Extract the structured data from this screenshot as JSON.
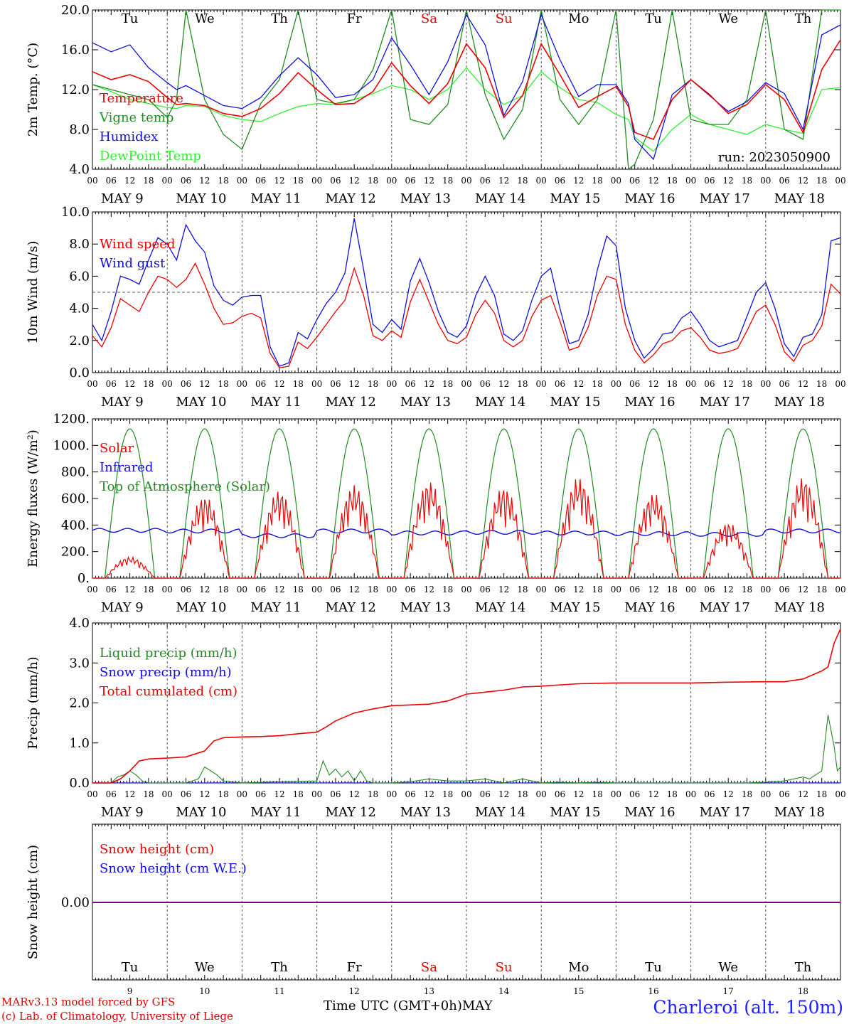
{
  "days": {
    "weekday": [
      "Tu",
      "We",
      "Th",
      "Fr",
      "Sa",
      "Su",
      "Mo",
      "Tu",
      "We",
      "Th"
    ],
    "weekday_color": [
      "#000000",
      "#000000",
      "#000000",
      "#000000",
      "#ee0000",
      "#ee0000",
      "#000000",
      "#000000",
      "#000000",
      "#000000"
    ],
    "date_label": [
      "MAY  9",
      "MAY 10",
      "MAY 11",
      "MAY 12",
      "MAY 13",
      "MAY 14",
      "MAY 15",
      "MAY 16",
      "MAY 17",
      "MAY 18"
    ],
    "day_number": [
      "9",
      "10",
      "11",
      "12",
      "13",
      "14",
      "15",
      "16",
      "17",
      "18"
    ]
  },
  "hour_ticks": [
    "00",
    "06",
    "12",
    "18"
  ],
  "hour_tick_end": "00",
  "footer": {
    "credit_line1": "MARv3.13 model forced by GFS",
    "credit_line2": "(c) Lab. of Climatology, University of Liege",
    "xlabel": "Time UTC (GMT+0h)",
    "month": "MAY",
    "station": "Charleroi (alt. 150m)"
  },
  "colors": {
    "red": "#ee0000",
    "green": "#228b22",
    "blue": "#1010dd",
    "lightgreen": "#33ee33",
    "purple": "#800080"
  },
  "chart_data": [
    {
      "type": "line",
      "ylabel": "2m Temp. (°C)",
      "yticks": [
        "20.0",
        "16.0",
        "12.0",
        "8.0",
        "4.0"
      ],
      "ylim": [
        4,
        20
      ],
      "annotation": "run: 2023050900",
      "x_unit": "hours since MAY 9 00 UTC",
      "series": [
        {
          "name": "Temperature",
          "color": "red",
          "x": [
            0,
            6,
            12,
            18,
            24,
            27,
            30,
            36,
            42,
            48,
            54,
            60,
            66,
            72,
            78,
            84,
            90,
            96,
            102,
            108,
            114,
            120,
            126,
            132,
            138,
            144,
            150,
            156,
            162,
            168,
            172,
            174,
            180,
            186,
            192,
            198,
            204,
            210,
            216,
            222,
            228,
            234,
            240
          ],
          "y": [
            13.8,
            13,
            13.5,
            12.8,
            11.2,
            10.5,
            10.6,
            10.4,
            9.6,
            9.3,
            10.1,
            11.6,
            13.7,
            12,
            10.5,
            10.6,
            11.8,
            14.7,
            12.4,
            10.6,
            12.6,
            16.6,
            14.2,
            9.2,
            11.4,
            16.6,
            13.5,
            10.2,
            11.3,
            12.3,
            10.3,
            7.7,
            7,
            11,
            13,
            11.5,
            9.6,
            10.5,
            12.5,
            11,
            7.7,
            14,
            17
          ]
        },
        {
          "name": "Vigne temp",
          "color": "green",
          "x": [
            0,
            6,
            12,
            18,
            24,
            27,
            30,
            36,
            42,
            48,
            54,
            60,
            66,
            72,
            78,
            84,
            90,
            96,
            102,
            108,
            114,
            120,
            126,
            132,
            138,
            144,
            150,
            156,
            162,
            168,
            172,
            174,
            180,
            186,
            192,
            198,
            204,
            210,
            216,
            222,
            228,
            234,
            240
          ],
          "y": [
            12.5,
            12,
            11.5,
            11,
            9.2,
            11,
            20,
            11,
            7.5,
            6,
            10.6,
            13,
            20,
            11,
            10.6,
            11,
            14,
            20,
            9,
            8.5,
            10.5,
            20,
            11.5,
            7,
            10,
            20,
            11,
            8.5,
            11,
            20,
            4,
            4.5,
            9,
            20,
            9,
            8.5,
            8.5,
            11,
            20,
            8,
            7,
            20,
            20
          ]
        },
        {
          "name": "Humidex",
          "color": "blue",
          "x": [
            0,
            6,
            12,
            18,
            24,
            27,
            30,
            36,
            42,
            48,
            54,
            60,
            66,
            72,
            78,
            84,
            90,
            96,
            102,
            108,
            114,
            120,
            126,
            132,
            138,
            144,
            150,
            156,
            162,
            168,
            172,
            174,
            180,
            186,
            192,
            198,
            204,
            210,
            216,
            222,
            228,
            234,
            240
          ],
          "y": [
            16.7,
            15.8,
            16.5,
            14.2,
            12.7,
            12,
            12.4,
            11.4,
            10.4,
            10.1,
            11.2,
            13.4,
            15.2,
            13.5,
            11.2,
            11.5,
            13,
            17.2,
            14.5,
            11.5,
            14.8,
            19.5,
            16.5,
            9.4,
            12.8,
            19.5,
            15,
            11.3,
            12.5,
            12.5,
            10.6,
            7,
            5,
            11.5,
            13,
            11.4,
            9.8,
            10.8,
            12.7,
            11.6,
            8,
            17.5,
            18.5
          ]
        },
        {
          "name": "DewPoint Temp",
          "color": "lightgreen",
          "x": [
            0,
            6,
            12,
            18,
            24,
            27,
            30,
            36,
            42,
            48,
            54,
            60,
            66,
            72,
            78,
            84,
            90,
            96,
            102,
            108,
            114,
            120,
            126,
            132,
            138,
            144,
            150,
            156,
            162,
            168,
            172,
            174,
            180,
            186,
            192,
            198,
            204,
            210,
            216,
            222,
            228,
            234,
            240
          ],
          "y": [
            12.5,
            11.8,
            11,
            10.6,
            10.2,
            10.1,
            10.4,
            10.3,
            9.4,
            9,
            8.8,
            9.6,
            10.3,
            10.6,
            10.5,
            11,
            11.6,
            12.4,
            12,
            11,
            12,
            14.2,
            12,
            10.5,
            11.4,
            13.8,
            12.2,
            11,
            10.7,
            9.5,
            9,
            7.2,
            5.8,
            8,
            9.5,
            8.5,
            8,
            7.5,
            8.5,
            8,
            7.6,
            12,
            12.2
          ]
        }
      ]
    },
    {
      "type": "line",
      "ylabel": "10m Wind (m/s)",
      "yticks": [
        "10.0",
        "8.0",
        "6.0",
        "4.0",
        "2.0",
        "0.0"
      ],
      "ylim": [
        0,
        10
      ],
      "reference_line": 5.0,
      "x_unit": "hours since MAY 9 00 UTC",
      "series": [
        {
          "name": "Wind speed",
          "color": "red",
          "x": [
            0,
            3,
            6,
            9,
            12,
            15,
            18,
            21,
            24,
            27,
            30,
            33,
            36,
            39,
            42,
            45,
            48,
            51,
            54,
            57,
            60,
            63,
            66,
            69,
            72,
            75,
            78,
            81,
            84,
            87,
            90,
            93,
            96,
            99,
            102,
            105,
            108,
            111,
            114,
            117,
            120,
            123,
            126,
            129,
            132,
            135,
            138,
            141,
            144,
            147,
            150,
            153,
            156,
            159,
            162,
            165,
            168,
            171,
            174,
            177,
            180,
            183,
            186,
            189,
            192,
            195,
            198,
            201,
            204,
            207,
            210,
            213,
            216,
            219,
            222,
            225,
            228,
            231,
            234,
            237,
            240
          ],
          "y": [
            2.3,
            1.6,
            2.8,
            4.6,
            4.2,
            3.8,
            5,
            6,
            5.8,
            5.3,
            5.8,
            6.8,
            5.5,
            4,
            3,
            3.1,
            3.5,
            3.7,
            3.4,
            1.2,
            0.3,
            0.4,
            1.9,
            1.5,
            2.2,
            3,
            3.8,
            4.5,
            6.5,
            4.8,
            2.3,
            2,
            2.6,
            2.2,
            4.4,
            5.8,
            4.4,
            3,
            2,
            1.8,
            2.2,
            3.6,
            4.5,
            3.7,
            2,
            1.6,
            2,
            3.5,
            4.5,
            4.8,
            3.2,
            1.4,
            1.6,
            2.8,
            4.8,
            6,
            5.8,
            3,
            1.4,
            0.6,
            1.1,
            1.8,
            2,
            2.6,
            2.8,
            2.2,
            1.4,
            1.2,
            1.3,
            1.5,
            2.6,
            3.8,
            4.2,
            3,
            1.3,
            0.7,
            1.7,
            2,
            2.9,
            5.5,
            4.9
          ]
        },
        {
          "name": "Wind gust",
          "color": "blue",
          "x": [
            0,
            3,
            6,
            9,
            12,
            15,
            18,
            21,
            24,
            27,
            30,
            33,
            36,
            39,
            42,
            45,
            48,
            51,
            54,
            57,
            60,
            63,
            66,
            69,
            72,
            75,
            78,
            81,
            84,
            87,
            90,
            93,
            96,
            99,
            102,
            105,
            108,
            111,
            114,
            117,
            120,
            123,
            126,
            129,
            132,
            135,
            138,
            141,
            144,
            147,
            150,
            153,
            156,
            159,
            162,
            165,
            168,
            171,
            174,
            177,
            180,
            183,
            186,
            189,
            192,
            195,
            198,
            201,
            204,
            207,
            210,
            213,
            216,
            219,
            222,
            225,
            228,
            231,
            234,
            237,
            240
          ],
          "y": [
            3,
            2,
            3.8,
            6,
            5.8,
            5.5,
            7,
            8.4,
            8,
            7,
            9.2,
            8.2,
            7.5,
            5.4,
            4.5,
            4.2,
            4.7,
            4.8,
            4.8,
            1.6,
            0.4,
            0.6,
            2.5,
            2.1,
            3.3,
            4.3,
            5,
            6.2,
            9.6,
            6.4,
            3,
            2.5,
            3.3,
            2.7,
            5.7,
            7.1,
            5.6,
            3.8,
            2.5,
            2.2,
            2.9,
            4.8,
            6,
            4.8,
            2.4,
            2,
            2.6,
            4.5,
            6,
            6.5,
            4,
            1.8,
            2,
            3.6,
            6.4,
            8.5,
            7.9,
            4,
            2,
            0.9,
            1.5,
            2.4,
            2.5,
            3.4,
            3.8,
            3,
            2,
            1.6,
            1.8,
            2,
            3.5,
            5,
            5.6,
            4,
            1.8,
            1,
            2.2,
            2.4,
            3.6,
            8.2,
            8.4
          ]
        }
      ]
    },
    {
      "type": "line",
      "ylabel": "Energy fluxes (W/m²)",
      "yticks": [
        "1200.",
        "1000.",
        "800.",
        "600.",
        "400.",
        "200.",
        "0."
      ],
      "ylim": [
        0,
        1200
      ],
      "x_unit": "hours since MAY 9 00 UTC",
      "daily_top_of_atmosphere_peak": 1125,
      "daily_solar_peak": [
        160,
        620,
        660,
        700,
        730,
        690,
        760,
        640,
        420,
        760
      ],
      "infrared_level": [
        360,
        355,
        320,
        355,
        340,
        345,
        340,
        335,
        330,
        355
      ],
      "series": [
        {
          "name": "Solar",
          "color": "red"
        },
        {
          "name": "Infrared",
          "color": "blue"
        },
        {
          "name": "Top of Atmosphere (Solar)",
          "color": "green"
        }
      ]
    },
    {
      "type": "line",
      "ylabel": "Precip (mm/h)",
      "yticks": [
        "4.0",
        "3.0",
        "2.0",
        "1.0",
        "0.0"
      ],
      "ylim": [
        0,
        4
      ],
      "x_unit": "hours since MAY 9 00 UTC",
      "series": [
        {
          "name": "Liquid precip (mm/h)",
          "color": "green",
          "x": [
            0,
            6,
            8,
            10,
            12,
            14,
            16,
            18,
            24,
            30,
            34,
            36,
            38,
            40,
            42,
            48,
            60,
            72,
            74,
            76,
            78,
            80,
            82,
            84,
            86,
            88,
            90,
            96,
            102,
            108,
            114,
            120,
            126,
            132,
            138,
            144,
            150,
            156,
            162,
            168,
            174,
            180,
            186,
            192,
            198,
            204,
            210,
            216,
            222,
            228,
            230,
            232,
            234,
            236,
            238,
            239,
            240
          ],
          "y": [
            0,
            0,
            0.15,
            0.2,
            0.3,
            0.2,
            0.05,
            0,
            0,
            0,
            0.1,
            0.4,
            0.3,
            0.2,
            0.05,
            0,
            0.03,
            0.05,
            0.55,
            0.2,
            0.35,
            0.15,
            0.3,
            0.05,
            0.3,
            0.05,
            0,
            0,
            0.03,
            0.1,
            0.05,
            0.05,
            0.1,
            0,
            0.1,
            0,
            0.02,
            0,
            0.02,
            0,
            0,
            0,
            0,
            0,
            0,
            0,
            0,
            0.02,
            0.05,
            0.15,
            0.1,
            0.2,
            0.3,
            1.7,
            0.9,
            0.3,
            0.4
          ]
        },
        {
          "name": "Snow precip (mm/h)",
          "color": "blue",
          "x": [
            0,
            240
          ],
          "y": [
            0,
            0
          ]
        },
        {
          "name": "Total cumulated (cm)",
          "color": "red",
          "x": [
            0,
            6,
            9,
            12,
            15,
            18,
            24,
            30,
            36,
            39,
            42,
            48,
            54,
            60,
            66,
            72,
            75,
            78,
            81,
            84,
            90,
            96,
            102,
            108,
            114,
            120,
            126,
            132,
            138,
            144,
            156,
            168,
            180,
            192,
            204,
            216,
            222,
            228,
            234,
            236,
            238,
            240
          ],
          "y": [
            0,
            0,
            0.1,
            0.3,
            0.55,
            0.6,
            0.62,
            0.65,
            0.8,
            1.05,
            1.13,
            1.15,
            1.16,
            1.18,
            1.23,
            1.27,
            1.4,
            1.55,
            1.65,
            1.75,
            1.85,
            1.93,
            1.95,
            1.97,
            2.05,
            2.22,
            2.27,
            2.32,
            2.4,
            2.42,
            2.48,
            2.5,
            2.5,
            2.5,
            2.52,
            2.53,
            2.53,
            2.6,
            2.8,
            2.9,
            3.5,
            3.85
          ]
        }
      ]
    },
    {
      "type": "line",
      "ylabel": "Snow height (cm)",
      "yticks": [
        "0.00"
      ],
      "x_unit": "hours since MAY 9 00 UTC",
      "series": [
        {
          "name": "Snow height (cm)",
          "color": "red",
          "x": [
            0,
            240
          ],
          "y": [
            0,
            0
          ]
        },
        {
          "name": "Snow height (cm W.E.)",
          "color": "blue",
          "x": [
            0,
            240
          ],
          "y": [
            0,
            0
          ]
        }
      ]
    }
  ]
}
